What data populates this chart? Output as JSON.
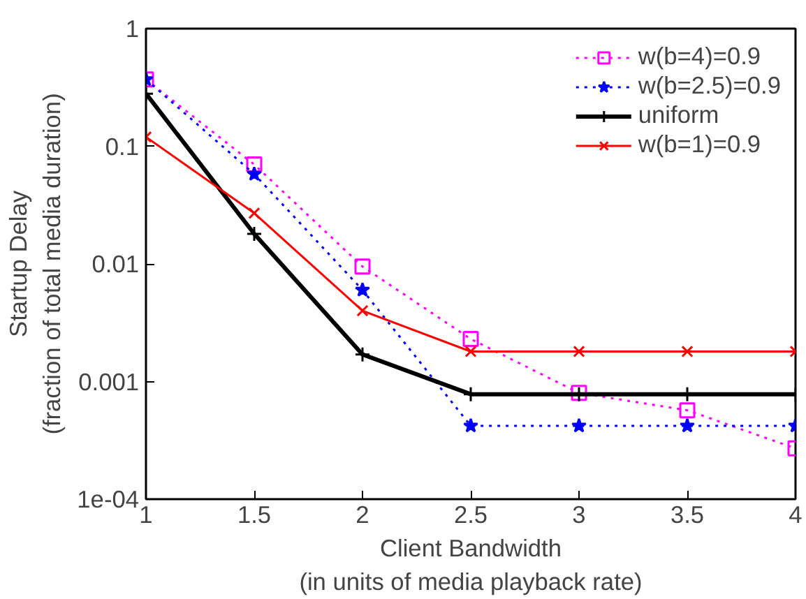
{
  "chart_data": {
    "type": "line",
    "xlabel": "Client Bandwidth\n(in units of media playback rate)",
    "ylabel": "Startup Delay\n(fraction of total media duration)",
    "x": [
      1,
      1.5,
      2,
      2.5,
      3,
      3.5,
      4
    ],
    "xlim": [
      1,
      4
    ],
    "xticks": [
      1,
      1.5,
      2,
      2.5,
      3,
      3.5,
      4
    ],
    "ylim": [
      0.0001,
      1
    ],
    "yticks": [
      {
        "value": 0.0001,
        "label": "1e-04"
      },
      0.001,
      0.01,
      0.1,
      1
    ],
    "log": "y",
    "grid": false,
    "legend": "top right",
    "series": [
      {
        "name": "w(b=4)=0.9",
        "color": "#ff00ff",
        "marker": "square",
        "line_style": "dotted",
        "values": [
          0.37,
          0.07,
          0.0095,
          0.0023,
          0.0008,
          0.00057,
          0.00027
        ]
      },
      {
        "name": "w(b=2.5)=0.9",
        "color": "#0000ff",
        "marker": "star",
        "line_style": "dotted",
        "values": [
          0.37,
          0.058,
          0.006,
          0.00042,
          0.00042,
          0.00042,
          0.00042
        ]
      },
      {
        "name": "uniform",
        "color": "#000000",
        "marker": "cross",
        "line_style": "solid",
        "values": [
          0.28,
          0.018,
          0.0017,
          0.00078,
          0.00078,
          0.00078,
          0.00078
        ]
      },
      {
        "name": "w(b=1)=0.9",
        "color": "#ff0000",
        "marker": "x",
        "line_style": "solid",
        "values": [
          0.12,
          0.027,
          0.004,
          0.0018,
          0.0018,
          0.0018,
          0.0018
        ]
      }
    ]
  }
}
